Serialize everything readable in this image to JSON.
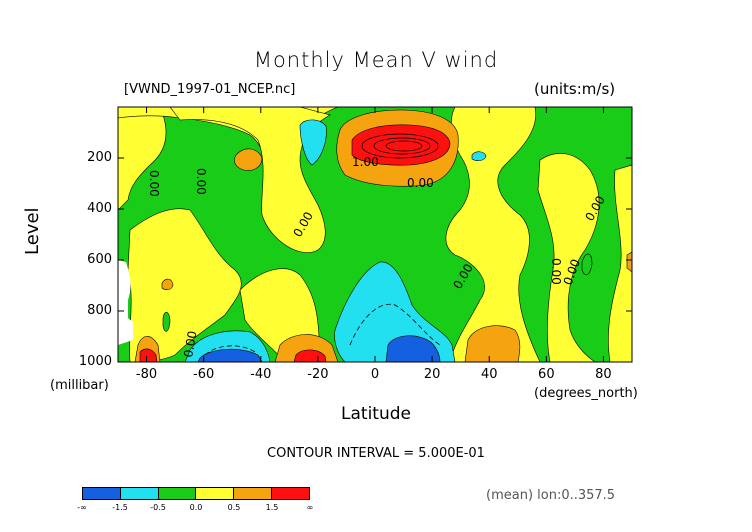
{
  "chart_data": {
    "type": "heatmap",
    "title": "Monthly Mean V wind",
    "file_label": "[VWND_1997-01_NCEP.nc]",
    "units_label": "(units:m/s)",
    "xlabel": "Latitude",
    "ylabel": "Level",
    "x_unit": "(degrees_north)",
    "y_unit": "(millibar)",
    "xlim": [
      -90,
      90
    ],
    "ylim": [
      1000,
      0
    ],
    "x_ticks": [
      "-80",
      "-60",
      "-40",
      "-20",
      "0",
      "20",
      "40",
      "60",
      "80"
    ],
    "x_tick_values": [
      -80,
      -60,
      -40,
      -20,
      0,
      20,
      40,
      60,
      80
    ],
    "y_ticks": [
      "200",
      "400",
      "600",
      "800",
      "1000"
    ],
    "y_tick_values": [
      200,
      400,
      600,
      800,
      1000
    ],
    "contour_interval": "CONTOUR INTERVAL = 5.000E-01",
    "mean_note": "(mean) lon:0..357.5",
    "contour_labels": [
      "0.00",
      "0.00",
      "0.00",
      "1.00",
      "0.00",
      "0.00",
      "0.00",
      "0.00",
      "0.00",
      "0.00"
    ],
    "colorbar": {
      "colors": [
        "#1560e0",
        "#22e0f0",
        "#18cc18",
        "#ffff33",
        "#f5a410",
        "#ff1010"
      ],
      "labels": [
        "-∞",
        "-1.5",
        "-0.5",
        "0.0",
        "0.5",
        "1.5",
        "∞"
      ]
    }
  }
}
